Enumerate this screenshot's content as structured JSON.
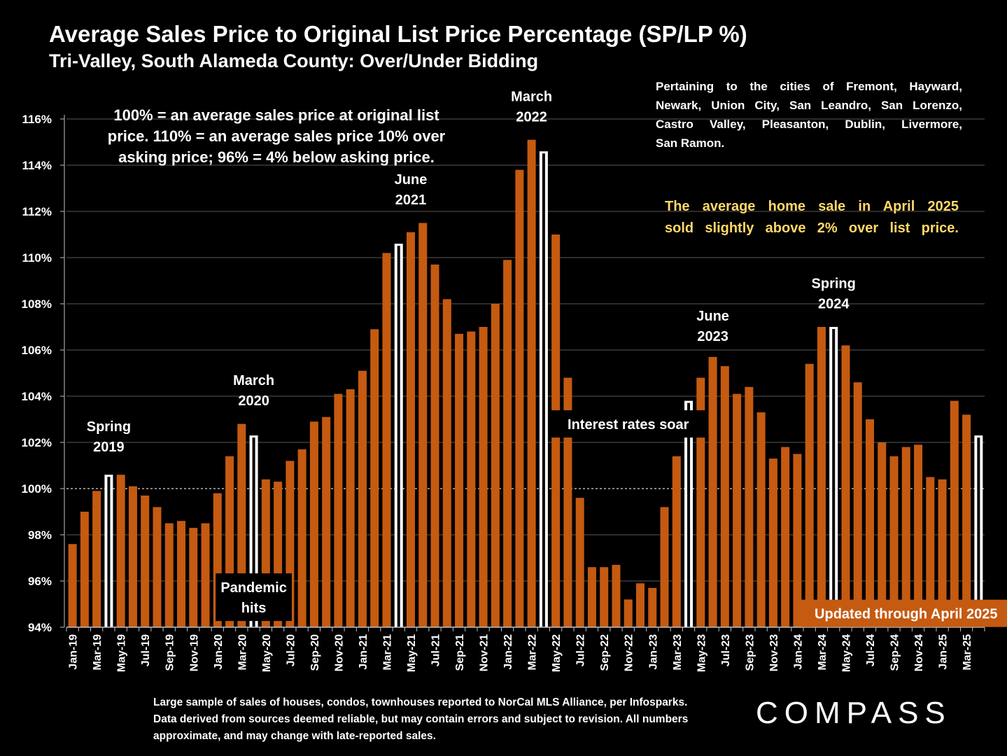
{
  "title": "Average Sales Price to Original List Price Percentage (SP/LP %)",
  "subtitle": "Tri-Valley, South Alameda County:  Over/Under Bidding",
  "notes": {
    "left": "100% = an average sales price at original list price. 110% = an average sales price 10% over asking price; 96% = 4% below asking price.",
    "cities_lines": [
      "Pertaining to the cities of Fremont, Hayward,",
      "Newark, Union City, San Leandro, San Lorenzo,",
      "Castro Valley, Pleasanton, Dublin, Livermore,",
      "San Ramon."
    ],
    "april_lines": [
      "The average home sale in April 2025",
      "sold slightly above 2% over list price."
    ]
  },
  "footnote": "Large sample of sales of houses, condos, townhouses reported to NorCal MLS Alliance, per Infosparks. Data derived from sources deemed reliable, but may contain errors and subject to revision. All numbers approximate, and may change with late-reported sales.",
  "logo": "COMPASS",
  "colors": {
    "bar": "#c55a11",
    "highlight": "#ffffff",
    "april_note": "#ffd966",
    "background": "#000000"
  },
  "chart_data": {
    "type": "bar",
    "ylim": [
      94,
      116
    ],
    "yticks": [
      94,
      96,
      98,
      100,
      102,
      104,
      106,
      108,
      110,
      112,
      114,
      116
    ],
    "ytick_suffix": "%",
    "reference_line": 100,
    "grid": true,
    "categories": [
      "Jan-19",
      "Feb-19",
      "Mar-19",
      "Apr-19",
      "May-19",
      "Jun-19",
      "Jul-19",
      "Aug-19",
      "Sep-19",
      "Oct-19",
      "Nov-19",
      "Dec-19",
      "Jan-20",
      "Feb-20",
      "Mar-20",
      "Apr-20",
      "May-20",
      "Jun-20",
      "Jul-20",
      "Aug-20",
      "Sep-20",
      "Oct-20",
      "Nov-20",
      "Dec-20",
      "Jan-21",
      "Feb-21",
      "Mar-21",
      "Apr-21",
      "May-21",
      "Jun-21",
      "Jul-21",
      "Aug-21",
      "Sep-21",
      "Oct-21",
      "Nov-21",
      "Dec-21",
      "Jan-22",
      "Feb-22",
      "Mar-22",
      "Apr-22",
      "May-22",
      "Jun-22",
      "Jul-22",
      "Aug-22",
      "Sep-22",
      "Oct-22",
      "Nov-22",
      "Dec-22",
      "Jan-23",
      "Feb-23",
      "Mar-23",
      "Apr-23",
      "May-23",
      "Jun-23",
      "Jul-23",
      "Aug-23",
      "Sep-23",
      "Oct-23",
      "Nov-23",
      "Dec-23",
      "Jan-24",
      "Feb-24",
      "Mar-24",
      "Apr-24",
      "May-24",
      "Jun-24",
      "Jul-24",
      "Aug-24",
      "Sep-24",
      "Oct-24",
      "Nov-24",
      "Dec-24",
      "Jan-25",
      "Feb-25",
      "Mar-25",
      "Apr-25"
    ],
    "tick_labels": [
      "Jan-19",
      "Mar-19",
      "May-19",
      "Jul-19",
      "Sep-19",
      "Nov-19",
      "Jan-20",
      "Mar-20",
      "May-20",
      "Jul-20",
      "Sep-20",
      "Nov-20",
      "Jan-21",
      "Mar-21",
      "May-21",
      "Jul-21",
      "Sep-21",
      "Nov-21",
      "Jan-22",
      "Mar-22",
      "May-22",
      "Jul-22",
      "Sep-22",
      "Nov-22",
      "Jan-23",
      "Mar-23",
      "May-23",
      "Jul-23",
      "Sep-23",
      "Nov-23",
      "Jan-24",
      "Mar-24",
      "May-24",
      "Jul-24",
      "Sep-24",
      "Nov-24",
      "Jan-25",
      "Mar-25"
    ],
    "values": [
      97.6,
      99.0,
      99.9,
      100.6,
      100.6,
      100.1,
      99.7,
      99.2,
      98.5,
      98.6,
      98.3,
      98.5,
      99.8,
      101.4,
      102.8,
      102.3,
      100.4,
      100.3,
      101.2,
      101.7,
      102.9,
      103.1,
      104.1,
      104.3,
      105.1,
      106.9,
      110.2,
      110.6,
      111.1,
      111.5,
      109.7,
      108.2,
      106.7,
      106.8,
      107.0,
      108.0,
      109.9,
      113.8,
      115.1,
      114.6,
      111.0,
      104.8,
      99.6,
      96.6,
      96.6,
      96.7,
      95.2,
      95.9,
      95.7,
      99.2,
      101.4,
      103.8,
      104.8,
      105.7,
      105.3,
      104.1,
      104.4,
      103.3,
      101.3,
      101.8,
      101.5,
      105.4,
      107.0,
      107.0,
      106.2,
      104.6,
      103.0,
      102.0,
      101.4,
      101.8,
      101.9,
      100.5,
      100.4,
      103.8,
      103.2,
      102.3
    ],
    "highlighted": [
      "Apr-19",
      "Apr-20",
      "Apr-21",
      "Apr-22",
      "Apr-23",
      "Apr-24",
      "Apr-25"
    ],
    "annotations": [
      {
        "lines": [
          "Spring",
          "2019"
        ],
        "category": "Apr-19",
        "value": 101.6,
        "boxed": false
      },
      {
        "lines": [
          "March",
          "2020"
        ],
        "category": "Apr-20",
        "value": 103.6,
        "boxed": false
      },
      {
        "lines": [
          "June",
          "2021"
        ],
        "category": "May-21",
        "value": 112.3,
        "boxed": false
      },
      {
        "lines": [
          "March",
          "2022"
        ],
        "category": "Mar-22",
        "value": 115.9,
        "boxed": false
      },
      {
        "lines": [
          "June",
          "2023"
        ],
        "category": "Jun-23",
        "value": 106.4,
        "boxed": false
      },
      {
        "lines": [
          "Spring",
          "2024"
        ],
        "category": "Apr-24",
        "value": 107.8,
        "boxed": false
      },
      {
        "lines": [
          "Pandemic",
          "hits"
        ],
        "category": "Apr-20",
        "value": 95.3,
        "boxed": true
      },
      {
        "lines": [
          "Interest rates soar"
        ],
        "category": "Nov-22",
        "value": 102.8,
        "boxed": true
      },
      {
        "lines": [
          "Updated through April 2025"
        ],
        "category": "Oct-24",
        "value": 94.6,
        "boxed": true,
        "fill": "#c55a11"
      }
    ]
  }
}
